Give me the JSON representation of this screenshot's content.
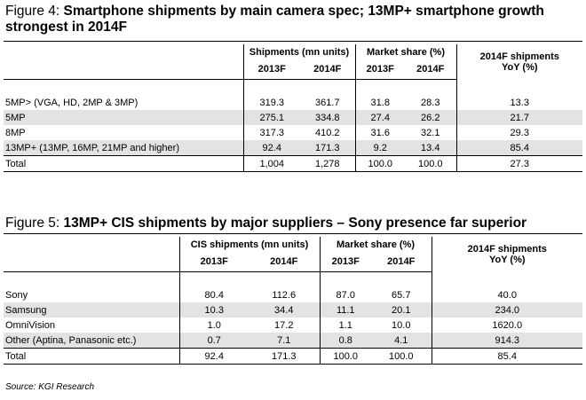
{
  "figure4": {
    "label": "Figure 4:",
    "title_line1": "Smartphone shipments by main camera spec; 13MP+ smartphone growth",
    "title_line2": "strongest in 2014F",
    "headers": {
      "group1": "Shipments (mn units)",
      "group2": "Market share (%)",
      "group3": "2014F shipments YoY (%)",
      "y1": "2013F",
      "y2": "2014F",
      "y3": "2013F",
      "y4": "2014F"
    },
    "rows": [
      {
        "label": "5MP> (VGA, HD, 2MP & 3MP)",
        "v1": "319.3",
        "v2": "361.7",
        "v3": "31.8",
        "v4": "28.3",
        "v5": "13.3"
      },
      {
        "label": "5MP",
        "v1": "275.1",
        "v2": "334.8",
        "v3": "27.4",
        "v4": "26.2",
        "v5": "21.7"
      },
      {
        "label": "8MP",
        "v1": "317.3",
        "v2": "410.2",
        "v3": "31.6",
        "v4": "32.1",
        "v5": "29.3"
      },
      {
        "label": "13MP+ (13MP, 16MP, 21MP and higher)",
        "v1": "92.4",
        "v2": "171.3",
        "v3": "9.2",
        "v4": "13.4",
        "v5": "85.4"
      },
      {
        "label": "Total",
        "v1": "1,004",
        "v2": "1,278",
        "v3": "100.0",
        "v4": "100.0",
        "v5": "27.3"
      }
    ]
  },
  "figure5": {
    "label": "Figure 5:",
    "title_line1": "13MP+ CIS shipments by major suppliers – Sony presence far superior",
    "headers": {
      "group1": "CIS shipments (mn units)",
      "group2": "Market share (%)",
      "group3": "2014F shipments YoY (%)",
      "y1": "2013F",
      "y2": "2014F",
      "y3": "2013F",
      "y4": "2014F"
    },
    "rows": [
      {
        "label": "Sony",
        "v1": "80.4",
        "v2": "112.6",
        "v3": "87.0",
        "v4": "65.7",
        "v5": "40.0"
      },
      {
        "label": "Samsung",
        "v1": "10.3",
        "v2": "34.4",
        "v3": "11.1",
        "v4": "20.1",
        "v5": "234.0"
      },
      {
        "label": "OmniVision",
        "v1": "1.0",
        "v2": "17.2",
        "v3": "1.1",
        "v4": "10.0",
        "v5": "1620.0"
      },
      {
        "label": "Other (Aptina, Panasonic etc.)",
        "v1": "0.7",
        "v2": "7.1",
        "v3": "0.8",
        "v4": "4.1",
        "v5": "914.3"
      },
      {
        "label": "Total",
        "v1": "92.4",
        "v2": "171.3",
        "v3": "100.0",
        "v4": "100.0",
        "v5": "85.4"
      }
    ]
  },
  "source": "Source: KGI Research"
}
